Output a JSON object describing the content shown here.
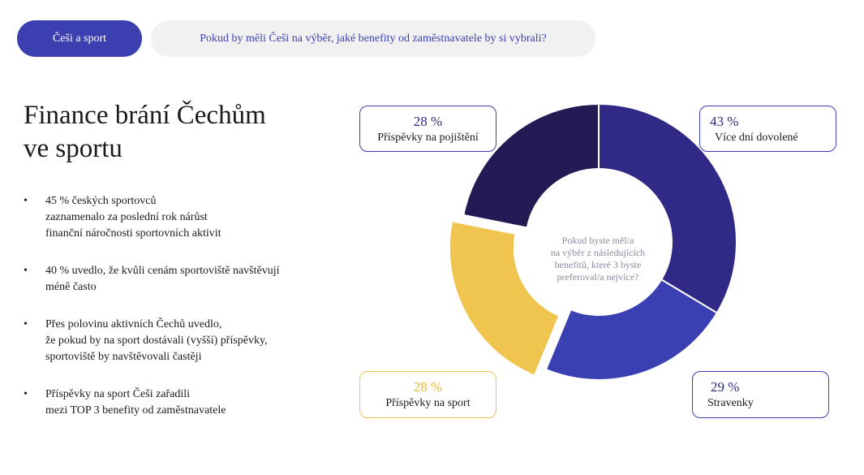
{
  "header": {
    "tag": "Češi a sport",
    "question": "Pokud by měli Češi na výběr,  jaké benefity od zaměstnavatele by si vybrali?"
  },
  "title": {
    "line1": "Finance brání Čechům",
    "line2": "ve sportu"
  },
  "bullets": [
    "45 % českých sportovců\nzaznamenalo za poslední rok nárůst\nfinanční náročnosti sportovních aktivit",
    "40 % uvedlo, že kvůli cenám sportoviště navštěvují\nméně často",
    "Přes polovinu aktivních Čechů uvedlo,\nže pokud by na sport dostávali (vyšší) příspěvky,\nsportoviště by navštěvovali častěji",
    "Příspěvky na sport Češi zařadili\nmezi TOP 3 benefity od zaměstnavatele"
  ],
  "bullet_symbol": "•",
  "chart_data": {
    "type": "pie",
    "variant": "donut",
    "center_text": "Pokud byste měl/a\nna výběr z následujících\nbenefitů, které 3 byste\npreferoval/a nejvíce?",
    "slices": [
      {
        "name": "Více dní dovolené",
        "value": 43,
        "label": "43 %",
        "color": "#302a86"
      },
      {
        "name": "Stravenky",
        "value": 29,
        "label": "29 %",
        "color": "#3a40b2"
      },
      {
        "name": "Příspěvky na sport",
        "value": 28,
        "label": "28 %",
        "color": "#efc44f",
        "exploded": true
      },
      {
        "name": "Příspěvky na pojištění",
        "value": 28,
        "label": "28 %",
        "color": "#221b54"
      }
    ]
  },
  "colors": {
    "accent": "#3b3fb0",
    "yellow": "#efc44f",
    "label_text_blue": "#2a2a80",
    "label_text_yellow": "#e8b63a"
  }
}
